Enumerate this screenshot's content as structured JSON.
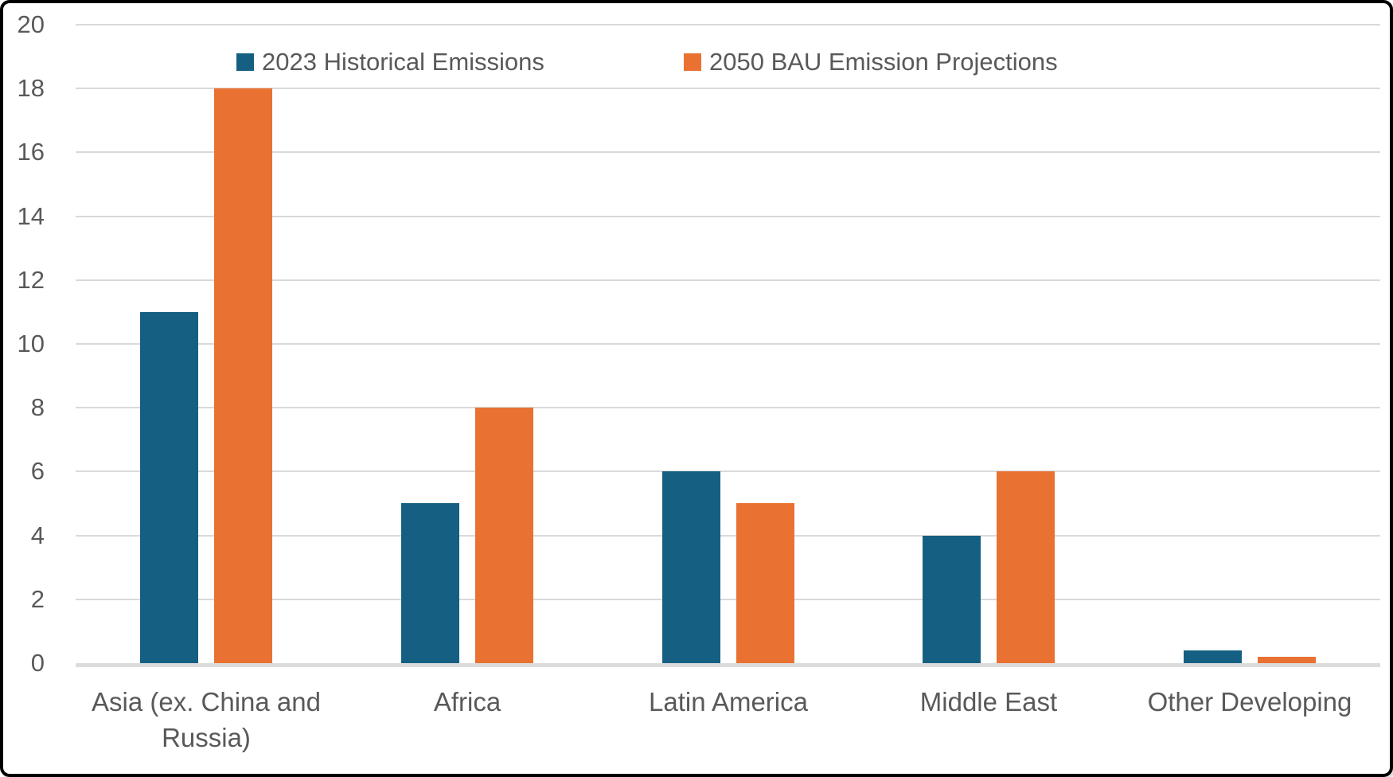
{
  "chart_data": {
    "type": "bar",
    "title": "",
    "xlabel": "",
    "ylabel": "",
    "categories": [
      "Asia (ex. China and Russia)",
      "Africa",
      "Latin America",
      "Middle East",
      "Other Developing"
    ],
    "series": [
      {
        "name": "2023 Historical Emissions",
        "color": "#156082",
        "values": [
          11,
          5,
          6,
          4,
          0.4
        ]
      },
      {
        "name": "2050 BAU Emission Projections",
        "color": "#E97132",
        "values": [
          18,
          8,
          5,
          6,
          0.2
        ]
      }
    ],
    "ylim": [
      0,
      20
    ],
    "yticks": [
      0,
      2,
      4,
      6,
      8,
      10,
      12,
      14,
      16,
      18,
      20
    ],
    "grid": true,
    "legend_position": "top",
    "colors": {
      "gridline": "#d9d9d9",
      "axis_line": "#dcdcdc",
      "text": "#595959",
      "border": "#000000",
      "background": "#ffffff"
    }
  }
}
